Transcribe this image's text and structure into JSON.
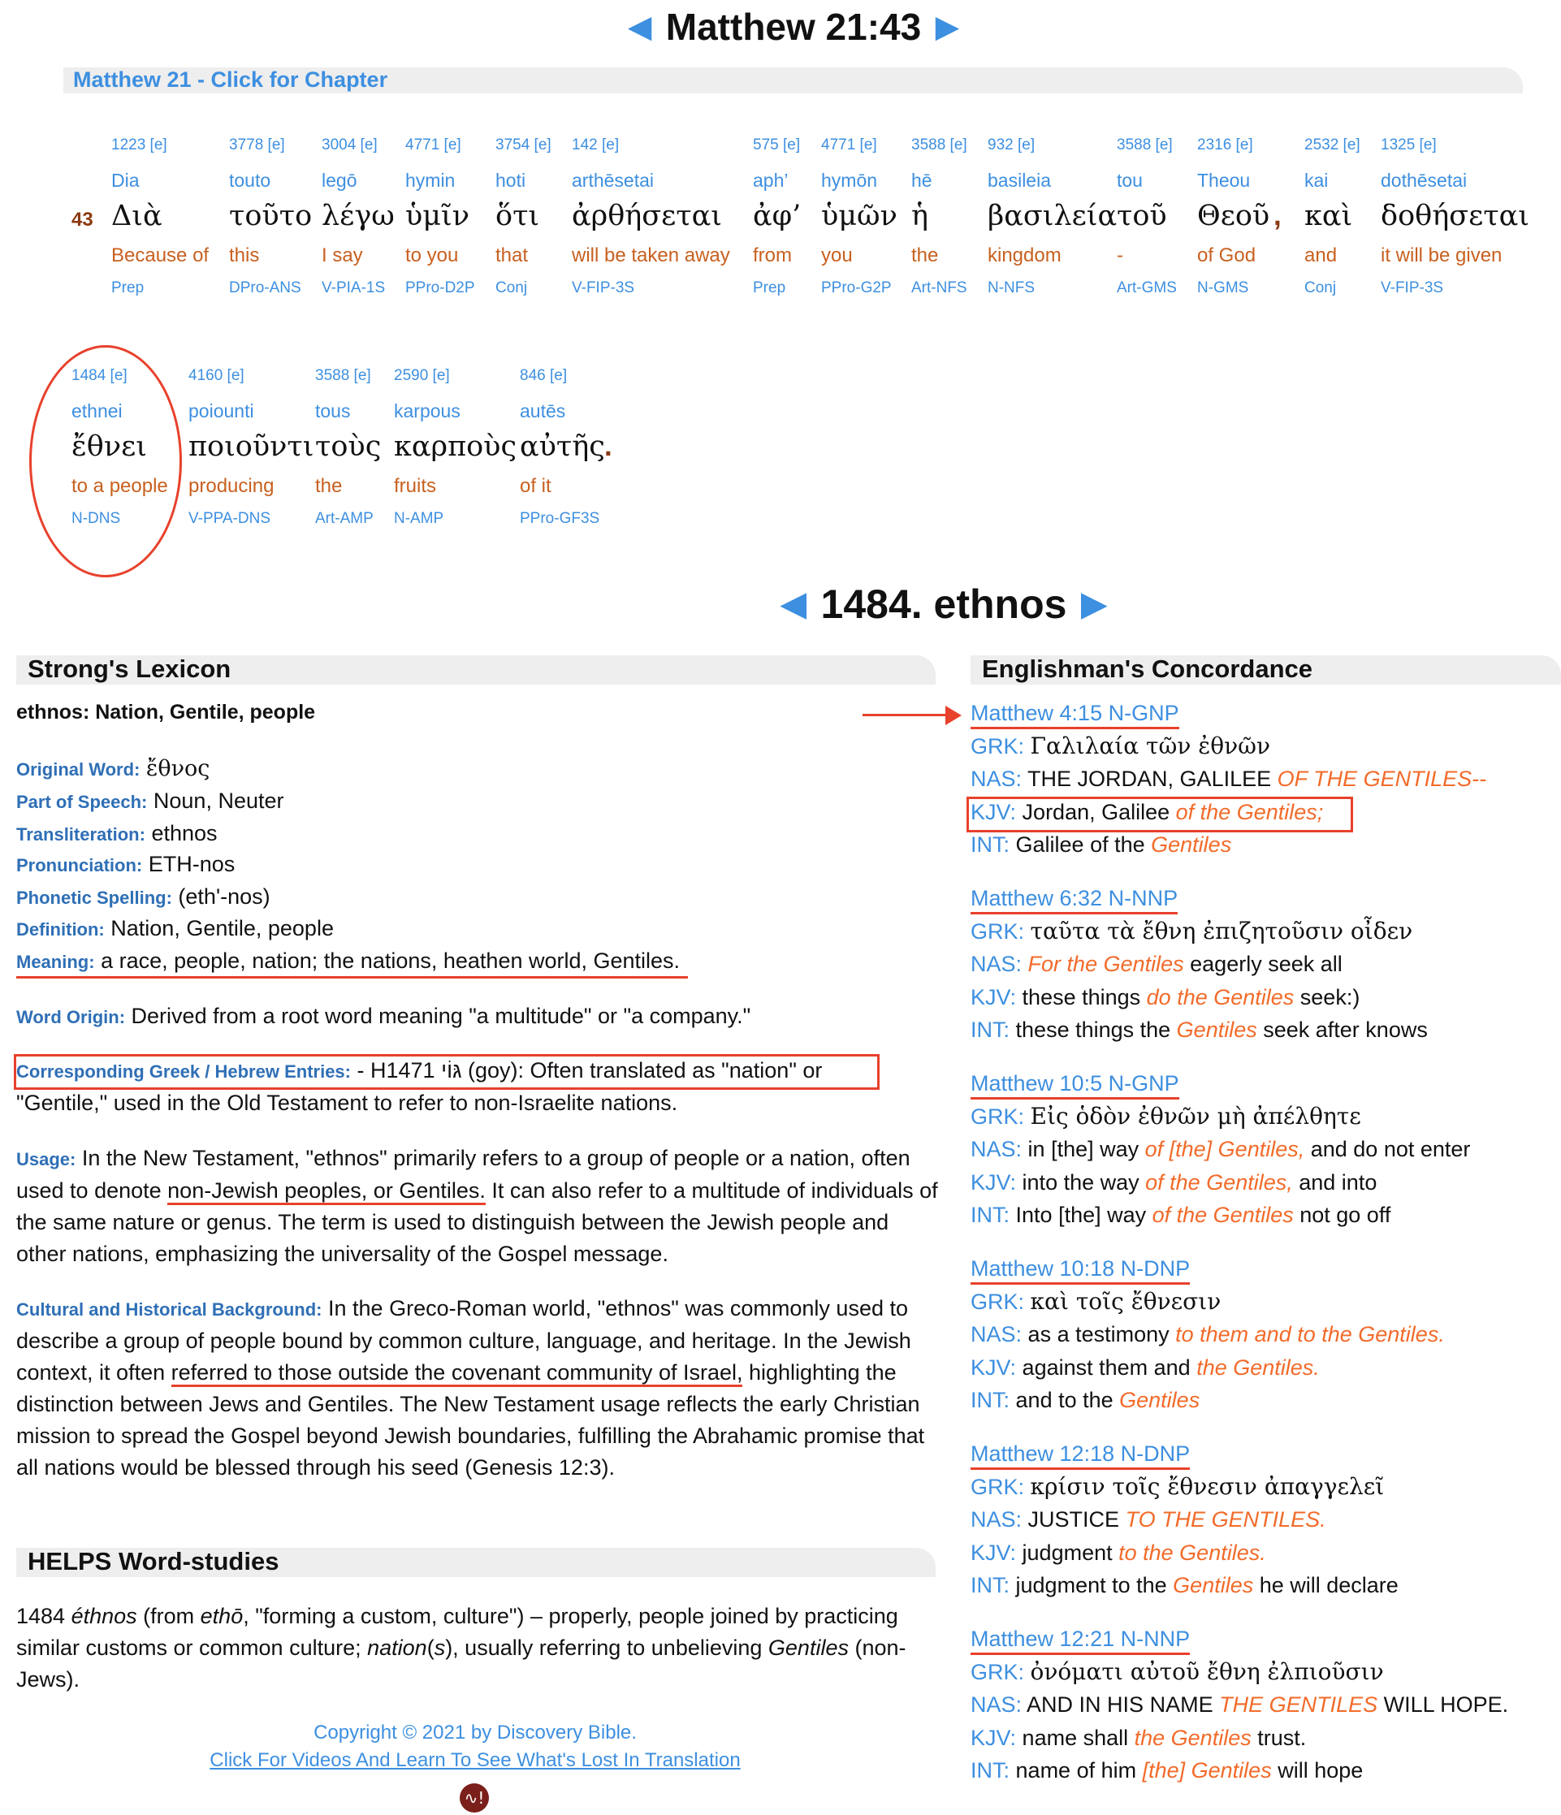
{
  "verse": {
    "title": "Matthew 21:43",
    "chapter_link": "Matthew 21 - Click for Chapter",
    "number": "43"
  },
  "interlinear": {
    "row1": [
      {
        "strong": "1223 [e]",
        "translit": "Dia",
        "greek": "Διὰ",
        "english": "Because of",
        "parse": "Prep"
      },
      {
        "strong": "3778 [e]",
        "translit": "touto",
        "greek": "τοῦτο",
        "english": "this",
        "parse": "DPro-ANS"
      },
      {
        "strong": "3004 [e]",
        "translit": "legō",
        "greek": "λέγω",
        "english": "I say",
        "parse": "V-PIA-1S"
      },
      {
        "strong": "4771 [e]",
        "translit": "hymin",
        "greek": "ὑμῖν",
        "english": "to you",
        "parse": "PPro-D2P"
      },
      {
        "strong": "3754 [e]",
        "translit": "hoti",
        "greek": "ὅτι",
        "english": "that",
        "parse": "Conj"
      },
      {
        "strong": "142 [e]",
        "translit": "arthēsetai",
        "greek": "ἀρθήσεται",
        "english": "will be taken away",
        "parse": "V-FIP-3S"
      },
      {
        "strong": "575 [e]",
        "translit": "aph’",
        "greek": "ἀφ’",
        "english": "from",
        "parse": "Prep"
      },
      {
        "strong": "4771 [e]",
        "translit": "hymōn",
        "greek": "ὑμῶν",
        "english": "you",
        "parse": "PPro-G2P"
      },
      {
        "strong": "3588 [e]",
        "translit": "hē",
        "greek": "ἡ",
        "english": "the",
        "parse": "Art-NFS"
      },
      {
        "strong": "932 [e]",
        "translit": "basileia",
        "greek": "βασιλεία",
        "english": "kingdom",
        "parse": "N-NFS"
      },
      {
        "strong": "3588 [e]",
        "translit": "tou",
        "greek": "τοῦ",
        "english": "-",
        "parse": "Art-GMS"
      },
      {
        "strong": "2316 [e]",
        "translit": "Theou",
        "greek": "Θεοῦ",
        "english": "of God",
        "parse": "N-GMS"
      },
      {
        "strong": "2532 [e]",
        "translit": "kai",
        "greek": "καὶ",
        "english": "and",
        "parse": "Conj"
      },
      {
        "strong": "1325 [e]",
        "translit": "dothēsetai",
        "greek": "δοθήσεται",
        "english": "it will be given",
        "parse": "V-FIP-3S"
      }
    ],
    "row1_punct": ",",
    "row2": [
      {
        "strong": "1484 [e]",
        "translit": "ethnei",
        "greek": "ἔθνει",
        "english": "to a people",
        "parse": "N-DNS"
      },
      {
        "strong": "4160 [e]",
        "translit": "poiounti",
        "greek": "ποιοῦντι",
        "english": "producing",
        "parse": "V-PPA-DNS"
      },
      {
        "strong": "3588 [e]",
        "translit": "tous",
        "greek": "τοὺς",
        "english": "the",
        "parse": "Art-AMP"
      },
      {
        "strong": "2590 [e]",
        "translit": "karpous",
        "greek": "καρποὺς",
        "english": "fruits",
        "parse": "N-AMP"
      },
      {
        "strong": "846 [e]",
        "translit": "autēs",
        "greek": "αὐτῆς",
        "english": "of it",
        "parse": "PPro-GF3S"
      }
    ],
    "row2_punct": "."
  },
  "lexicon": {
    "heading": "1484. ethnos",
    "section_title": "Strong's Lexicon",
    "summary": "ethnos: Nation, Gentile, people",
    "fields": [
      {
        "label": "Original Word:",
        "value": "ἔθνος"
      },
      {
        "label": "Part of Speech:",
        "value": "Noun, Neuter"
      },
      {
        "label": "Transliteration:",
        "value": "ethnos"
      },
      {
        "label": "Pronunciation:",
        "value": "ETH-nos"
      },
      {
        "label": "Phonetic Spelling:",
        "value": "(eth'-nos)"
      },
      {
        "label": "Definition:",
        "value": "Nation, Gentile, people"
      },
      {
        "label": "Meaning:",
        "value": "a race, people, nation; the nations, heathen world, Gentiles."
      }
    ],
    "word_origin": {
      "label": "Word Origin:",
      "value": "Derived from a root word meaning \"a multitude\" or \"a company.\""
    },
    "corresponding": {
      "label": "Corresponding Greek / Hebrew Entries:",
      "value1": "- H1471 גּוֹי (goy): Often translated as \"nation\" or",
      "value2": "\"Gentile,\" used in the Old Testament to refer to non-Israelite nations."
    },
    "usage": {
      "label": "Usage:",
      "pre": "In the New Testament, \"ethnos\" primarily refers to a group of people or a nation, often used to denote ",
      "underlined": "non-Jewish peoples, or Gentiles.",
      "post": " It can also refer to a multitude of individuals of the same nature or genus. The term is used to distinguish between the Jewish people and other nations, emphasizing the universality of the Gospel message."
    },
    "cultural": {
      "label": "Cultural and Historical Background:",
      "pre": "In the Greco-Roman world, \"ethnos\" was commonly used to describe a group of people bound by common culture, language, and heritage. In the Jewish context, it often ",
      "underlined": "referred to those outside the covenant community of Israel,",
      "post": " highlighting the distinction between Jews and Gentiles. The New Testament usage reflects the early Christian mission to spread the Gospel beyond Jewish boundaries, fulfilling the Abrahamic promise that all nations would be blessed through his seed (Genesis 12:3)."
    }
  },
  "helps": {
    "section_title": "HELPS Word-studies",
    "t1": "1484 ",
    "i1": "éthnos",
    "t2": " (from ",
    "i2": "ethō",
    "t3": ", \"forming a custom, culture\") – properly, people joined by practicing similar customs or common culture; ",
    "i3": "nation",
    "t4": "(",
    "i4": "s",
    "t5": "), usually referring to unbelieving ",
    "i5": "Gentiles",
    "t6": " (non-Jews)."
  },
  "footer": {
    "copyright": "Copyright © 2021 by Discovery Bible.",
    "link": "Click For Videos And Learn To See What's Lost In Translation",
    "logo": "∿!"
  },
  "concordance": {
    "section_title": "Englishman's Concordance",
    "entries": [
      {
        "ref": "Matthew 4:15 N-GNP",
        "grk": "Γαλιλαία τῶν ἐθνῶν",
        "nas": [
          {
            "t": "THE JORDAN, GALILEE ",
            "h": false
          },
          {
            "t": "OF THE GENTILES--",
            "h": true
          }
        ],
        "kjv": [
          {
            "t": "Jordan, Galilee ",
            "h": false
          },
          {
            "t": "of the Gentiles;",
            "h": true
          }
        ],
        "int": [
          {
            "t": "Galilee of the ",
            "h": false
          },
          {
            "t": "Gentiles",
            "h": true
          }
        ]
      },
      {
        "ref": "Matthew 6:32 N-NNP",
        "grk": "ταῦτα τὰ ἔθνη ἐπιζητοῦσιν οἶδεν",
        "nas": [
          {
            "t": "For the Gentiles",
            "h": true
          },
          {
            "t": " eagerly seek all",
            "h": false
          }
        ],
        "kjv": [
          {
            "t": "these things ",
            "h": false
          },
          {
            "t": "do the Gentiles",
            "h": true
          },
          {
            "t": " seek:)",
            "h": false
          }
        ],
        "int": [
          {
            "t": "these things the ",
            "h": false
          },
          {
            "t": "Gentiles",
            "h": true
          },
          {
            "t": " seek after knows",
            "h": false
          }
        ]
      },
      {
        "ref": "Matthew 10:5 N-GNP",
        "grk": "Εἰς ὁδὸν ἐθνῶν μὴ ἀπέλθητε",
        "nas": [
          {
            "t": "in [the] way ",
            "h": false
          },
          {
            "t": "of [the] Gentiles,",
            "h": true
          },
          {
            "t": " and do not enter",
            "h": false
          }
        ],
        "kjv": [
          {
            "t": "into the way ",
            "h": false
          },
          {
            "t": "of the Gentiles,",
            "h": true
          },
          {
            "t": " and into",
            "h": false
          }
        ],
        "int": [
          {
            "t": "Into [the] way ",
            "h": false
          },
          {
            "t": "of the Gentiles",
            "h": true
          },
          {
            "t": " not go off",
            "h": false
          }
        ]
      },
      {
        "ref": "Matthew 10:18 N-DNP",
        "grk": "καὶ τοῖς ἔθνεσιν",
        "nas": [
          {
            "t": "as a testimony ",
            "h": false
          },
          {
            "t": "to them and to the Gentiles.",
            "h": true
          }
        ],
        "kjv": [
          {
            "t": "against them and ",
            "h": false
          },
          {
            "t": "the Gentiles.",
            "h": true
          }
        ],
        "int": [
          {
            "t": "and to the ",
            "h": false
          },
          {
            "t": "Gentiles",
            "h": true
          }
        ]
      },
      {
        "ref": "Matthew 12:18 N-DNP",
        "grk": "κρίσιν τοῖς ἔθνεσιν ἀπαγγελεῖ",
        "nas": [
          {
            "t": "JUSTICE ",
            "h": false
          },
          {
            "t": "TO THE GENTILES.",
            "h": true
          }
        ],
        "kjv": [
          {
            "t": "judgment ",
            "h": false
          },
          {
            "t": "to the Gentiles.",
            "h": true
          }
        ],
        "int": [
          {
            "t": "judgment to the ",
            "h": false
          },
          {
            "t": "Gentiles",
            "h": true
          },
          {
            "t": " he will declare",
            "h": false
          }
        ]
      },
      {
        "ref": "Matthew 12:21 N-NNP",
        "grk": "ὀνόματι αὐτοῦ ἔθνη ἐλπιοῦσιν",
        "nas": [
          {
            "t": "AND IN HIS NAME ",
            "h": false
          },
          {
            "t": "THE GENTILES",
            "h": true
          },
          {
            "t": " WILL HOPE.",
            "h": false
          }
        ],
        "kjv": [
          {
            "t": "name shall ",
            "h": false
          },
          {
            "t": "the Gentiles",
            "h": true
          },
          {
            "t": " trust.",
            "h": false
          }
        ],
        "int": [
          {
            "t": "name of him ",
            "h": false
          },
          {
            "t": "[the] Gentiles",
            "h": true
          },
          {
            "t": " will hope",
            "h": false
          }
        ]
      }
    ],
    "labels": {
      "grk": "GRK:",
      "nas": "NAS:",
      "kjv": "KJV:",
      "int": "INT:"
    }
  },
  "colors": {
    "link_blue": "#3d8fe0",
    "english_gloss": "#c8601f",
    "highlight": "#f26b2a",
    "annotation_red": "#e8412c"
  }
}
